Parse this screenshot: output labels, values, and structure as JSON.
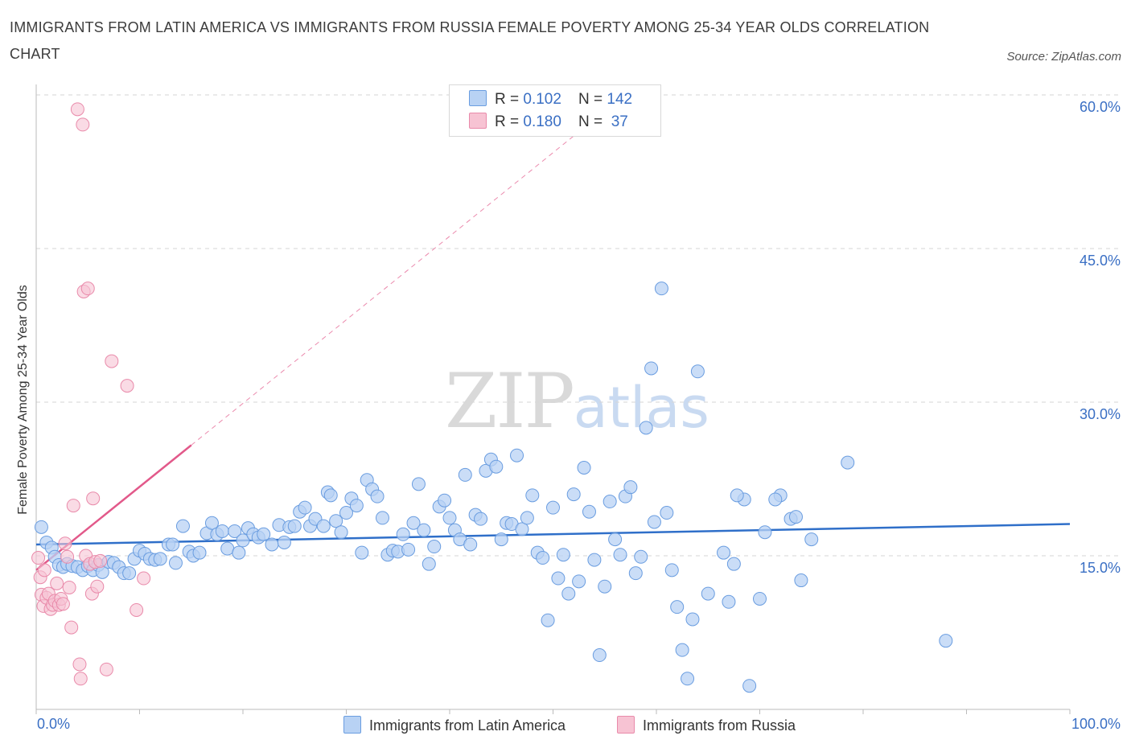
{
  "title": "IMMIGRANTS FROM LATIN AMERICA VS IMMIGRANTS FROM RUSSIA FEMALE POVERTY AMONG 25-34 YEAR OLDS CORRELATION CHART",
  "source": "Source: ZipAtlas.com",
  "watermark": {
    "zip": "ZIP",
    "atlas": "atlas"
  },
  "colors": {
    "latin_fill": "#b8d2f4",
    "latin_stroke": "#6a9de0",
    "latin_line": "#2f6fc9",
    "russia_fill": "#f7c3d3",
    "russia_stroke": "#e98aaa",
    "russia_line": "#e2598a",
    "grid": "#d6d6d6",
    "axis_text": "#3a6fc4"
  },
  "stats": [
    {
      "r_label": "R = ",
      "r_value": "0.102",
      "n_label": "N = ",
      "n_value": "142"
    },
    {
      "r_label": "R = ",
      "r_value": "0.180",
      "n_label": "N = ",
      "n_value": " 37"
    }
  ],
  "chart_data": {
    "type": "scatter",
    "title": "IMMIGRANTS FROM LATIN AMERICA VS IMMIGRANTS FROM RUSSIA FEMALE POVERTY AMONG 25-34 YEAR OLDS CORRELATION CHART",
    "xlabel": "",
    "ylabel": "Female Poverty Among 25-34 Year Olds",
    "xlim": [
      0,
      100
    ],
    "ylim": [
      0,
      60
    ],
    "x_tick_labels": [
      "0.0%",
      "100.0%"
    ],
    "y_ticks": [
      15,
      30,
      45,
      60
    ],
    "y_tick_labels": [
      "15.0%",
      "30.0%",
      "45.0%",
      "60.0%"
    ],
    "legend": [
      "Immigrants from Latin America",
      "Immigrants from Russia"
    ],
    "series": [
      {
        "name": "Immigrants from Latin America",
        "R": 0.102,
        "N": 142,
        "trend": {
          "x": [
            0,
            100
          ],
          "y": [
            16.1,
            18.1
          ]
        },
        "points": [
          [
            0.5,
            17.8
          ],
          [
            1.0,
            16.3
          ],
          [
            1.5,
            15.8
          ],
          [
            1.8,
            14.9
          ],
          [
            2.2,
            14.1
          ],
          [
            2.6,
            13.9
          ],
          [
            3.0,
            14.2
          ],
          [
            3.5,
            14.0
          ],
          [
            4.0,
            13.9
          ],
          [
            4.5,
            13.6
          ],
          [
            5.0,
            14.0
          ],
          [
            5.5,
            13.6
          ],
          [
            6.0,
            14.1
          ],
          [
            6.4,
            13.4
          ],
          [
            7.0,
            14.4
          ],
          [
            7.5,
            14.3
          ],
          [
            8.0,
            13.9
          ],
          [
            8.5,
            13.3
          ],
          [
            9.0,
            13.3
          ],
          [
            9.5,
            14.7
          ],
          [
            10.0,
            15.5
          ],
          [
            10.5,
            15.2
          ],
          [
            11.0,
            14.7
          ],
          [
            11.5,
            14.6
          ],
          [
            12.0,
            14.7
          ],
          [
            12.8,
            16.1
          ],
          [
            13.2,
            16.1
          ],
          [
            13.5,
            14.3
          ],
          [
            14.2,
            17.9
          ],
          [
            14.8,
            15.4
          ],
          [
            15.2,
            15.0
          ],
          [
            15.8,
            15.3
          ],
          [
            16.5,
            17.2
          ],
          [
            17.0,
            18.2
          ],
          [
            17.5,
            17.1
          ],
          [
            18.0,
            17.4
          ],
          [
            18.5,
            15.7
          ],
          [
            19.2,
            17.4
          ],
          [
            19.6,
            15.3
          ],
          [
            20.0,
            16.5
          ],
          [
            20.5,
            17.7
          ],
          [
            21.0,
            17.1
          ],
          [
            21.5,
            16.8
          ],
          [
            22.0,
            17.1
          ],
          [
            22.8,
            16.1
          ],
          [
            23.5,
            18.0
          ],
          [
            24.0,
            16.3
          ],
          [
            24.5,
            17.8
          ],
          [
            25.0,
            17.9
          ],
          [
            25.5,
            19.3
          ],
          [
            26.0,
            19.7
          ],
          [
            26.5,
            17.9
          ],
          [
            27.0,
            18.6
          ],
          [
            27.8,
            17.9
          ],
          [
            28.2,
            21.2
          ],
          [
            28.5,
            20.9
          ],
          [
            29.0,
            18.4
          ],
          [
            29.5,
            17.3
          ],
          [
            30.0,
            19.2
          ],
          [
            30.5,
            20.6
          ],
          [
            31.0,
            19.9
          ],
          [
            31.5,
            15.3
          ],
          [
            32.0,
            22.4
          ],
          [
            32.5,
            21.5
          ],
          [
            33.0,
            20.8
          ],
          [
            33.5,
            18.7
          ],
          [
            34.0,
            15.1
          ],
          [
            34.5,
            15.5
          ],
          [
            35.0,
            15.4
          ],
          [
            35.5,
            17.1
          ],
          [
            36.0,
            15.6
          ],
          [
            36.5,
            18.2
          ],
          [
            37.0,
            22.0
          ],
          [
            37.5,
            17.5
          ],
          [
            38.0,
            14.2
          ],
          [
            38.5,
            15.9
          ],
          [
            39.0,
            19.8
          ],
          [
            39.5,
            20.4
          ],
          [
            40.0,
            18.7
          ],
          [
            40.5,
            17.5
          ],
          [
            41.0,
            16.6
          ],
          [
            41.5,
            22.9
          ],
          [
            42.0,
            16.1
          ],
          [
            42.5,
            19.0
          ],
          [
            43.0,
            18.6
          ],
          [
            43.5,
            23.3
          ],
          [
            44.0,
            24.4
          ],
          [
            44.5,
            23.7
          ],
          [
            45.0,
            16.6
          ],
          [
            45.5,
            18.2
          ],
          [
            46.0,
            18.1
          ],
          [
            46.5,
            24.8
          ],
          [
            47.0,
            17.6
          ],
          [
            47.5,
            18.7
          ],
          [
            48.0,
            20.9
          ],
          [
            48.5,
            15.3
          ],
          [
            49.0,
            14.8
          ],
          [
            49.5,
            8.7
          ],
          [
            50.0,
            19.7
          ],
          [
            50.5,
            12.8
          ],
          [
            51.0,
            15.1
          ],
          [
            51.5,
            11.3
          ],
          [
            52.0,
            21.0
          ],
          [
            52.5,
            12.5
          ],
          [
            53.0,
            23.6
          ],
          [
            53.5,
            19.3
          ],
          [
            54.0,
            14.6
          ],
          [
            54.5,
            5.3
          ],
          [
            55.0,
            12.0
          ],
          [
            55.5,
            20.3
          ],
          [
            56.0,
            16.6
          ],
          [
            56.5,
            15.1
          ],
          [
            57.0,
            20.8
          ],
          [
            57.5,
            21.7
          ],
          [
            58.0,
            13.3
          ],
          [
            58.5,
            14.9
          ],
          [
            59.0,
            27.5
          ],
          [
            59.5,
            33.3
          ],
          [
            59.8,
            18.3
          ],
          [
            60.5,
            41.1
          ],
          [
            61.0,
            19.2
          ],
          [
            61.5,
            13.6
          ],
          [
            62.0,
            10.0
          ],
          [
            62.5,
            5.8
          ],
          [
            63.0,
            3.0
          ],
          [
            63.5,
            8.8
          ],
          [
            64.0,
            33.0
          ],
          [
            65.0,
            11.3
          ],
          [
            66.5,
            15.3
          ],
          [
            67.0,
            10.5
          ],
          [
            67.5,
            14.2
          ],
          [
            68.5,
            20.5
          ],
          [
            69.0,
            2.3
          ],
          [
            70.0,
            10.8
          ],
          [
            70.5,
            17.3
          ],
          [
            72.0,
            20.9
          ],
          [
            73.0,
            18.6
          ],
          [
            73.5,
            18.8
          ],
          [
            74.0,
            12.6
          ],
          [
            75.0,
            16.6
          ],
          [
            78.5,
            24.1
          ],
          [
            88.0,
            6.7
          ],
          [
            67.8,
            20.9
          ],
          [
            71.5,
            20.5
          ]
        ]
      },
      {
        "name": "Immigrants from Russia",
        "R": 0.18,
        "N": 37,
        "trend": {
          "x": [
            0,
            15
          ],
          "y": [
            13.6,
            25.8
          ],
          "dashed_to": {
            "x": 52.5,
            "y": 56.4
          }
        },
        "points": [
          [
            0.2,
            14.8
          ],
          [
            0.4,
            12.9
          ],
          [
            0.5,
            11.2
          ],
          [
            0.7,
            10.1
          ],
          [
            0.8,
            13.6
          ],
          [
            1.0,
            10.9
          ],
          [
            1.2,
            11.3
          ],
          [
            1.4,
            9.8
          ],
          [
            1.6,
            10.2
          ],
          [
            1.8,
            10.6
          ],
          [
            2.0,
            12.3
          ],
          [
            2.2,
            10.2
          ],
          [
            2.4,
            10.8
          ],
          [
            2.6,
            10.3
          ],
          [
            2.8,
            16.2
          ],
          [
            3.0,
            14.9
          ],
          [
            3.2,
            11.9
          ],
          [
            3.4,
            8.0
          ],
          [
            3.6,
            19.9
          ],
          [
            4.0,
            58.6
          ],
          [
            4.2,
            4.4
          ],
          [
            4.3,
            3.0
          ],
          [
            4.5,
            57.1
          ],
          [
            4.6,
            40.8
          ],
          [
            4.8,
            15.0
          ],
          [
            5.0,
            41.1
          ],
          [
            5.2,
            14.2
          ],
          [
            5.4,
            11.3
          ],
          [
            5.5,
            20.6
          ],
          [
            5.7,
            14.4
          ],
          [
            5.9,
            12.0
          ],
          [
            6.2,
            14.5
          ],
          [
            6.8,
            3.9
          ],
          [
            7.3,
            34.0
          ],
          [
            8.8,
            31.6
          ],
          [
            9.7,
            9.7
          ],
          [
            10.4,
            12.8
          ]
        ]
      }
    ]
  },
  "legend_labels": [
    "Immigrants from Latin America",
    "Immigrants from Russia"
  ]
}
